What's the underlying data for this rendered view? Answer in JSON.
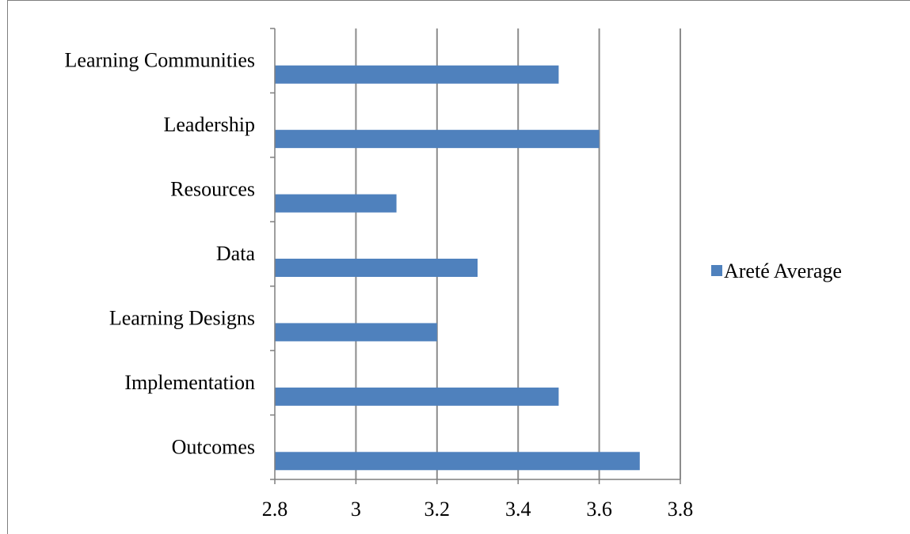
{
  "chart_data": {
    "type": "bar",
    "orientation": "horizontal",
    "categories": [
      "Learning Communities",
      "Leadership",
      "Resources",
      "Data",
      "Learning Designs",
      "Implementation",
      "Outcomes"
    ],
    "series": [
      {
        "name": "Areté Average",
        "values": [
          3.5,
          3.6,
          3.1,
          3.3,
          3.2,
          3.5,
          3.7
        ]
      }
    ],
    "xlim": [
      2.8,
      3.8
    ],
    "xticks": [
      "2.8",
      "3",
      "3.2",
      "3.4",
      "3.6",
      "3.8"
    ],
    "grid": "vertical",
    "legend_position": "right",
    "colors": {
      "bar": "#4f81bd",
      "grid": "#8c8c8c",
      "axis": "#7f7f7f"
    }
  }
}
